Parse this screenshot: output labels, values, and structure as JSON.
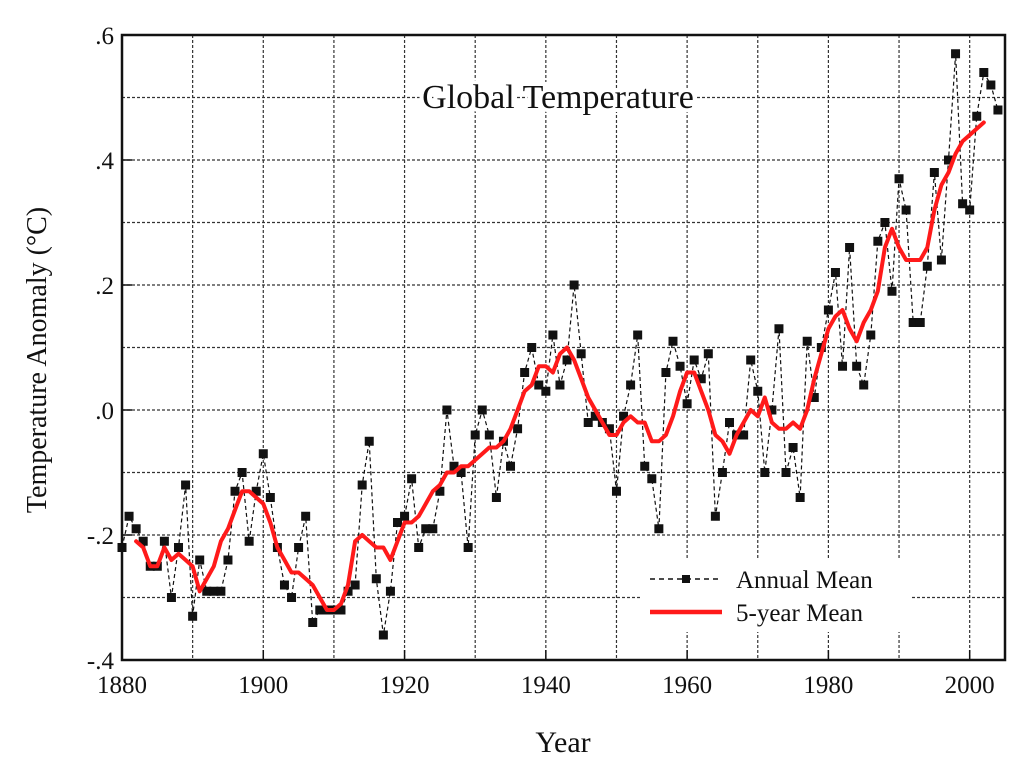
{
  "chart_data": {
    "type": "line",
    "title": "Global Temperature",
    "xlabel": "Year",
    "ylabel": "Temperature Anomaly (°C)",
    "xlim": [
      1880,
      2005
    ],
    "ylim": [
      -0.4,
      0.6
    ],
    "x_ticks": [
      1880,
      1900,
      1920,
      1940,
      1960,
      1980,
      2000
    ],
    "x_tick_labels": [
      "1880",
      "1900",
      "1920",
      "1940",
      "1960",
      "1980",
      "2000"
    ],
    "y_ticks": [
      -0.4,
      -0.2,
      0.0,
      0.2,
      0.4,
      0.6
    ],
    "y_tick_labels": [
      "-.4",
      "-.2",
      ".0",
      ".2",
      ".4",
      ".6"
    ],
    "grid": true,
    "legend_position": "bottom-right",
    "series": [
      {
        "name": "Annual Mean",
        "style": "dashed-with-square-markers",
        "color": "#111111",
        "x": [
          1880,
          1881,
          1882,
          1883,
          1884,
          1885,
          1886,
          1887,
          1888,
          1889,
          1890,
          1891,
          1892,
          1893,
          1894,
          1895,
          1896,
          1897,
          1898,
          1899,
          1900,
          1901,
          1902,
          1903,
          1904,
          1905,
          1906,
          1907,
          1908,
          1909,
          1910,
          1911,
          1912,
          1913,
          1914,
          1915,
          1916,
          1917,
          1918,
          1919,
          1920,
          1921,
          1922,
          1923,
          1924,
          1925,
          1926,
          1927,
          1928,
          1929,
          1930,
          1931,
          1932,
          1933,
          1934,
          1935,
          1936,
          1937,
          1938,
          1939,
          1940,
          1941,
          1942,
          1943,
          1944,
          1945,
          1946,
          1947,
          1948,
          1949,
          1950,
          1951,
          1952,
          1953,
          1954,
          1955,
          1956,
          1957,
          1958,
          1959,
          1960,
          1961,
          1962,
          1963,
          1964,
          1965,
          1966,
          1967,
          1968,
          1969,
          1970,
          1971,
          1972,
          1973,
          1974,
          1975,
          1976,
          1977,
          1978,
          1979,
          1980,
          1981,
          1982,
          1983,
          1984,
          1985,
          1986,
          1987,
          1988,
          1989,
          1990,
          1991,
          1992,
          1993,
          1994,
          1995,
          1996,
          1997,
          1998,
          1999,
          2000,
          2001,
          2002,
          2003,
          2004
        ],
        "values": [
          -0.22,
          -0.17,
          -0.19,
          -0.21,
          -0.25,
          -0.25,
          -0.21,
          -0.3,
          -0.22,
          -0.12,
          -0.33,
          -0.24,
          -0.29,
          -0.29,
          -0.29,
          -0.24,
          -0.13,
          -0.1,
          -0.21,
          -0.13,
          -0.07,
          -0.14,
          -0.22,
          -0.28,
          -0.3,
          -0.22,
          -0.17,
          -0.34,
          -0.32,
          -0.32,
          -0.32,
          -0.32,
          -0.29,
          -0.28,
          -0.12,
          -0.05,
          -0.27,
          -0.36,
          -0.29,
          -0.18,
          -0.17,
          -0.11,
          -0.22,
          -0.19,
          -0.19,
          -0.13,
          0.0,
          -0.09,
          -0.1,
          -0.22,
          -0.04,
          0.0,
          -0.04,
          -0.14,
          -0.05,
          -0.09,
          -0.03,
          0.06,
          0.1,
          0.04,
          0.03,
          0.12,
          0.04,
          0.08,
          0.2,
          0.09,
          -0.02,
          -0.01,
          -0.02,
          -0.03,
          -0.13,
          -0.01,
          0.04,
          0.12,
          -0.09,
          -0.11,
          -0.19,
          0.06,
          0.11,
          0.07,
          0.01,
          0.08,
          0.05,
          0.09,
          -0.17,
          -0.1,
          -0.02,
          -0.04,
          -0.04,
          0.08,
          0.03,
          -0.1,
          0.0,
          0.13,
          -0.1,
          -0.06,
          -0.14,
          0.11,
          0.02,
          0.1,
          0.16,
          0.22,
          0.07,
          0.26,
          0.07,
          0.04,
          0.12,
          0.27,
          0.3,
          0.19,
          0.37,
          0.32,
          0.14,
          0.14,
          0.23,
          0.38,
          0.24,
          0.4,
          0.57,
          0.33,
          0.32,
          0.47,
          0.54,
          0.52,
          0.48
        ]
      },
      {
        "name": "5-year Mean",
        "style": "solid-thick",
        "color": "#ff1a1a",
        "x": [
          1882,
          1883,
          1884,
          1885,
          1886,
          1887,
          1888,
          1889,
          1890,
          1891,
          1892,
          1893,
          1894,
          1895,
          1896,
          1897,
          1898,
          1899,
          1900,
          1901,
          1902,
          1903,
          1904,
          1905,
          1906,
          1907,
          1908,
          1909,
          1910,
          1911,
          1912,
          1913,
          1914,
          1915,
          1916,
          1917,
          1918,
          1919,
          1920,
          1921,
          1922,
          1923,
          1924,
          1925,
          1926,
          1927,
          1928,
          1929,
          1930,
          1931,
          1932,
          1933,
          1934,
          1935,
          1936,
          1937,
          1938,
          1939,
          1940,
          1941,
          1942,
          1943,
          1944,
          1945,
          1946,
          1947,
          1948,
          1949,
          1950,
          1951,
          1952,
          1953,
          1954,
          1955,
          1956,
          1957,
          1958,
          1959,
          1960,
          1961,
          1962,
          1963,
          1964,
          1965,
          1966,
          1967,
          1968,
          1969,
          1970,
          1971,
          1972,
          1973,
          1974,
          1975,
          1976,
          1977,
          1978,
          1979,
          1980,
          1981,
          1982,
          1983,
          1984,
          1985,
          1986,
          1987,
          1988,
          1989,
          1990,
          1991,
          1992,
          1993,
          1994,
          1995,
          1996,
          1997,
          1998,
          1999,
          2000,
          2001,
          2002
        ],
        "values": [
          -0.21,
          -0.22,
          -0.25,
          -0.25,
          -0.22,
          -0.24,
          -0.23,
          -0.24,
          -0.25,
          -0.29,
          -0.27,
          -0.25,
          -0.21,
          -0.19,
          -0.16,
          -0.13,
          -0.13,
          -0.14,
          -0.15,
          -0.18,
          -0.22,
          -0.24,
          -0.26,
          -0.26,
          -0.27,
          -0.28,
          -0.3,
          -0.32,
          -0.32,
          -0.31,
          -0.28,
          -0.21,
          -0.2,
          -0.21,
          -0.22,
          -0.22,
          -0.24,
          -0.21,
          -0.18,
          -0.18,
          -0.17,
          -0.15,
          -0.13,
          -0.12,
          -0.1,
          -0.1,
          -0.09,
          -0.09,
          -0.08,
          -0.07,
          -0.06,
          -0.06,
          -0.05,
          -0.03,
          0.0,
          0.03,
          0.04,
          0.07,
          0.07,
          0.06,
          0.09,
          0.1,
          0.08,
          0.05,
          0.02,
          0.0,
          -0.02,
          -0.04,
          -0.04,
          -0.02,
          -0.01,
          -0.02,
          -0.02,
          -0.05,
          -0.05,
          -0.04,
          -0.01,
          0.03,
          0.06,
          0.06,
          0.03,
          0.0,
          -0.04,
          -0.05,
          -0.07,
          -0.04,
          -0.02,
          0.0,
          -0.01,
          0.02,
          -0.02,
          -0.03,
          -0.03,
          -0.02,
          -0.03,
          0.0,
          0.05,
          0.09,
          0.13,
          0.15,
          0.16,
          0.13,
          0.11,
          0.14,
          0.16,
          0.19,
          0.26,
          0.29,
          0.26,
          0.24,
          0.24,
          0.24,
          0.26,
          0.32,
          0.36,
          0.38,
          0.41,
          0.43,
          0.44,
          0.45,
          0.46
        ]
      }
    ]
  }
}
